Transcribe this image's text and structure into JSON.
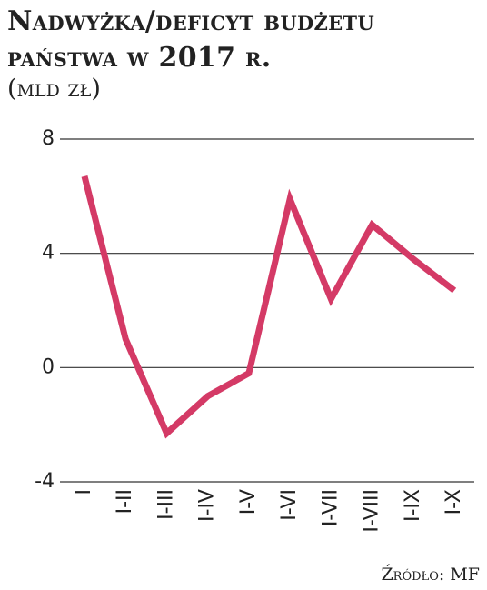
{
  "chart_data": {
    "type": "line",
    "title": "Nadwyżka/deficyt budżetu państwa w 2017 r.",
    "subtitle": "(mld zł)",
    "source": "Źródło: MF",
    "categories": [
      "I",
      "I-II",
      "I-III",
      "I-IV",
      "I-V",
      "I-VI",
      "I-VII",
      "I-VIII",
      "I-IX",
      "I-X"
    ],
    "series": [
      {
        "name": "Nadwyżka/deficyt",
        "color": "#d43a66",
        "values": [
          6.7,
          1.0,
          -2.3,
          -1.0,
          -0.2,
          5.9,
          2.4,
          5.0,
          3.8,
          2.7
        ]
      }
    ],
    "ylim": [
      -4,
      8
    ],
    "yticks": [
      -4,
      0,
      4,
      8
    ],
    "grid": true
  }
}
